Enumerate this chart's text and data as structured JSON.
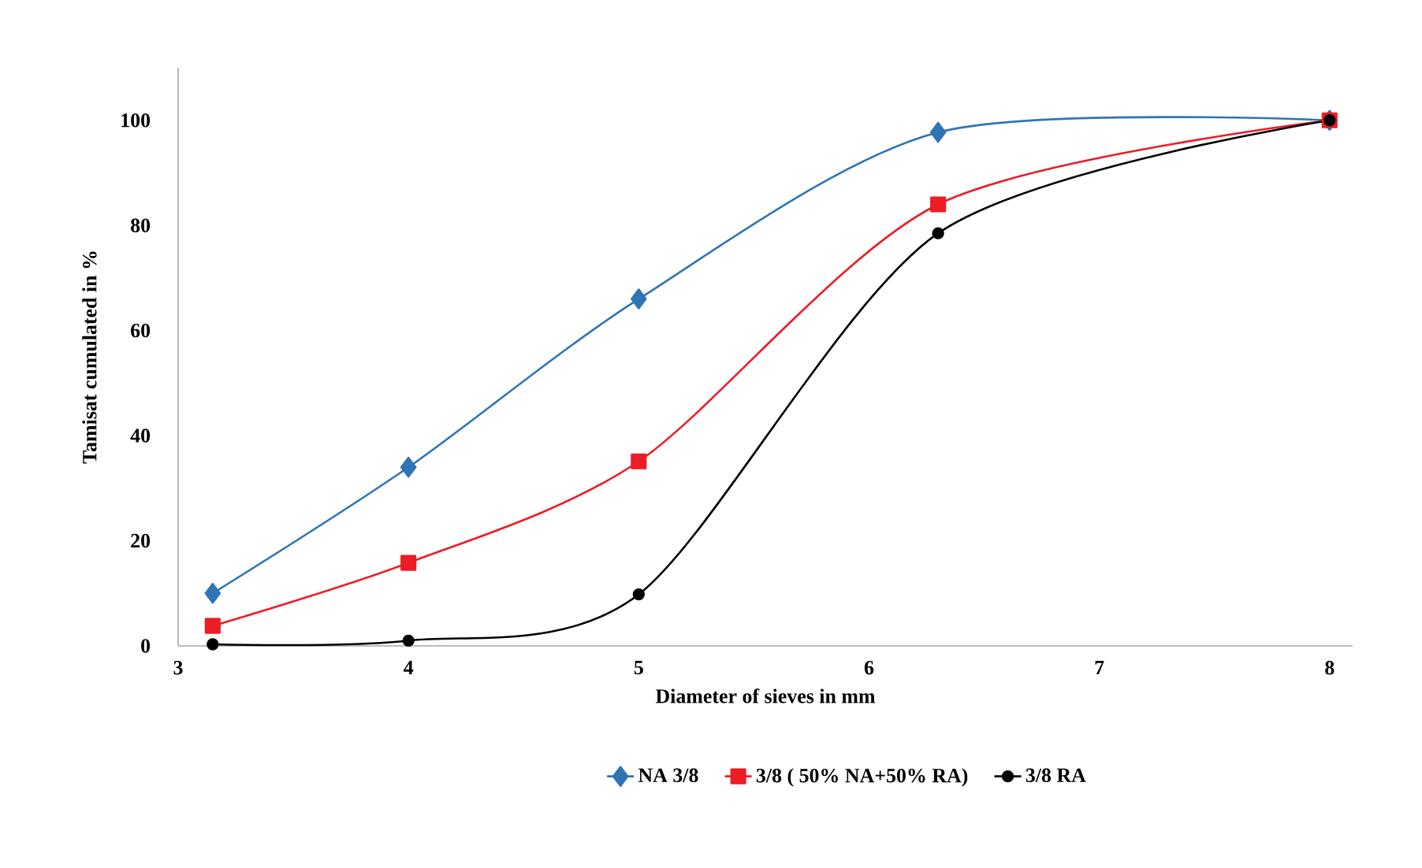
{
  "chart_data": {
    "type": "line",
    "xlabel": "Diameter of sieves in mm",
    "ylabel": "Tamisat cumulated in %",
    "xlim": [
      3,
      8.1
    ],
    "xticks": [
      3,
      4,
      5,
      6,
      7,
      8
    ],
    "ylim": [
      0,
      110
    ],
    "yticks": [
      0,
      20,
      40,
      60,
      80,
      100
    ],
    "grid": false,
    "legend": "bottom",
    "line_style": "solid",
    "series": [
      {
        "name": "NA 3/8",
        "color": "#2e75b6",
        "marker": "diamond",
        "x": [
          3.15,
          4,
          5,
          6.3,
          8
        ],
        "values": [
          10,
          34,
          66,
          97.7,
          100
        ]
      },
      {
        "name": "3/8  ( 50% NA+50% RA)",
        "color": "#ee1c25",
        "marker": "square",
        "x": [
          3.15,
          4,
          5,
          6.3,
          8
        ],
        "values": [
          3.8,
          15.8,
          35.1,
          84,
          100
        ]
      },
      {
        "name": "3/8  RA",
        "color": "#000000",
        "marker": "circle",
        "x": [
          3.15,
          4,
          5,
          6.3,
          8
        ],
        "values": [
          0.3,
          1,
          9.8,
          78.5,
          100
        ]
      }
    ]
  }
}
